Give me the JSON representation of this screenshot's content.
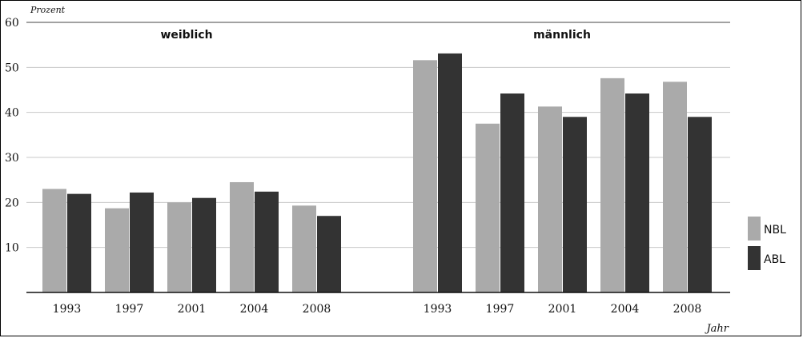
{
  "chart_data": {
    "type": "bar",
    "ylabel": "Prozent",
    "xlabel": "Jahr",
    "ylim": [
      0,
      60
    ],
    "yticks": [
      10,
      20,
      30,
      40,
      50,
      60
    ],
    "grid": true,
    "legend_position": "right",
    "categories": [
      "1993",
      "1997",
      "2001",
      "2004",
      "2008"
    ],
    "panels": [
      {
        "title": "weiblich",
        "series": [
          {
            "name": "NBL",
            "values": [
              23,
              18.7,
              20,
              24.5,
              19.3
            ]
          },
          {
            "name": "ABL",
            "values": [
              21.9,
              22.2,
              21,
              22.4,
              17
            ]
          }
        ]
      },
      {
        "title": "männlich",
        "series": [
          {
            "name": "NBL",
            "values": [
              51.6,
              37.5,
              41.3,
              47.6,
              46.8
            ]
          },
          {
            "name": "ABL",
            "values": [
              53.1,
              44.2,
              39,
              44.2,
              39
            ]
          }
        ]
      }
    ],
    "colors": {
      "NBL": "#aaaaaa",
      "ABL": "#333333"
    }
  }
}
